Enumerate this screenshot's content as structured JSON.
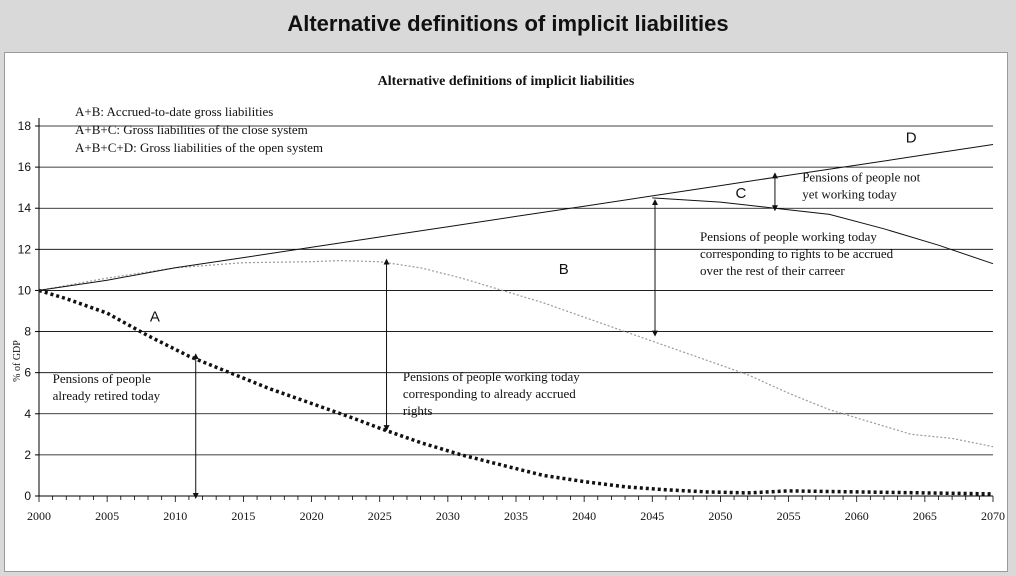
{
  "page_title": "Alternative definitions of implicit liabilities",
  "chart_data": {
    "type": "line",
    "title": "Alternative definitions of implicit liabilities",
    "xlabel": "",
    "ylabel": "% of GDP",
    "xlim": [
      2000,
      2070
    ],
    "ylim": [
      0,
      18
    ],
    "x_ticks": [
      2000,
      2005,
      2010,
      2015,
      2020,
      2025,
      2030,
      2035,
      2040,
      2045,
      2050,
      2055,
      2060,
      2065,
      2070
    ],
    "y_ticks": [
      0,
      2,
      4,
      6,
      8,
      10,
      12,
      14,
      16,
      18
    ],
    "grid": "horizontal",
    "legend_lines": [
      "A+B: Accrued-to-date gross liabilities",
      "A+B+C: Gross liabilities of the close system",
      "A+B+C+D: Gross liabilities of the open system"
    ],
    "colors": {
      "line": "#111111",
      "dotted_light": "#9a9a9a",
      "grid": "#000000"
    },
    "series": [
      {
        "style": "thick-dotted",
        "x": [
          2000,
          2002,
          2005,
          2008,
          2011,
          2014,
          2017,
          2020,
          2023,
          2025,
          2028,
          2031,
          2034,
          2037,
          2040,
          2043,
          2046,
          2049,
          2052,
          2055,
          2060,
          2065,
          2070
        ],
        "y": [
          10,
          9.6,
          8.9,
          7.8,
          6.8,
          6.0,
          5.2,
          4.5,
          3.8,
          3.3,
          2.6,
          2.0,
          1.5,
          1.0,
          0.7,
          0.45,
          0.3,
          0.2,
          0.15,
          0.25,
          0.2,
          0.15,
          0.1
        ]
      },
      {
        "style": "light-dotted",
        "x": [
          2000,
          2005,
          2010,
          2015,
          2020,
          2022,
          2025,
          2028,
          2031,
          2034,
          2037,
          2040,
          2043,
          2046,
          2049,
          2052,
          2055,
          2058,
          2061,
          2064,
          2067,
          2070
        ],
        "y": [
          10,
          10.6,
          11.1,
          11.35,
          11.4,
          11.45,
          11.4,
          11.1,
          10.6,
          10.0,
          9.4,
          8.7,
          8.0,
          7.3,
          6.6,
          5.9,
          5.0,
          4.2,
          3.6,
          3.0,
          2.8,
          2.4
        ]
      },
      {
        "style": "solid",
        "x": [
          2045,
          2050,
          2054,
          2058,
          2062,
          2066,
          2070
        ],
        "y": [
          14.5,
          14.3,
          14.0,
          13.7,
          13.0,
          12.2,
          11.3
        ]
      },
      {
        "style": "solid",
        "x": [
          2000,
          2005,
          2010,
          2015,
          2020,
          2025,
          2030,
          2035,
          2040,
          2045,
          2050,
          2055,
          2060,
          2065,
          2070
        ],
        "y": [
          10,
          10.5,
          11.1,
          11.6,
          12.1,
          12.6,
          13.1,
          13.6,
          14.1,
          14.6,
          15.1,
          15.6,
          16.1,
          16.6,
          17.1
        ]
      }
    ],
    "region_labels": [
      {
        "text": "A",
        "x": 2008.5,
        "y": 8.5
      },
      {
        "text": "B",
        "x": 2038.5,
        "y": 10.8
      },
      {
        "text": "C",
        "x": 2051.5,
        "y": 14.5
      },
      {
        "text": "D",
        "x": 2064,
        "y": 17.2
      }
    ],
    "annotations": [
      {
        "lines": [
          "Pensions of people",
          "already retired today"
        ],
        "x": 2001,
        "y": 5.5,
        "arrow": {
          "x": 2011.5,
          "y_from": 0,
          "y_to": 6.8
        }
      },
      {
        "lines": [
          "Pensions of people working today",
          "corresponding to already accrued",
          "rights"
        ],
        "x": 2026.7,
        "y": 5.6,
        "arrow": {
          "x": 2025.5,
          "y_from": 3.3,
          "y_to": 11.4
        }
      },
      {
        "lines": [
          "Pensions of people working today",
          "corresponding to rights to be accrued",
          "over the rest of their carreer"
        ],
        "x": 2048.5,
        "y": 12.4,
        "arrow": {
          "x": 2045.2,
          "y_from": 7.9,
          "y_to": 14.3
        }
      },
      {
        "lines": [
          "Pensions of people not",
          "yet working today"
        ],
        "x": 2056,
        "y": 15.3,
        "arrow": {
          "x": 2054,
          "y_from": 14.0,
          "y_to": 15.6
        }
      }
    ]
  }
}
